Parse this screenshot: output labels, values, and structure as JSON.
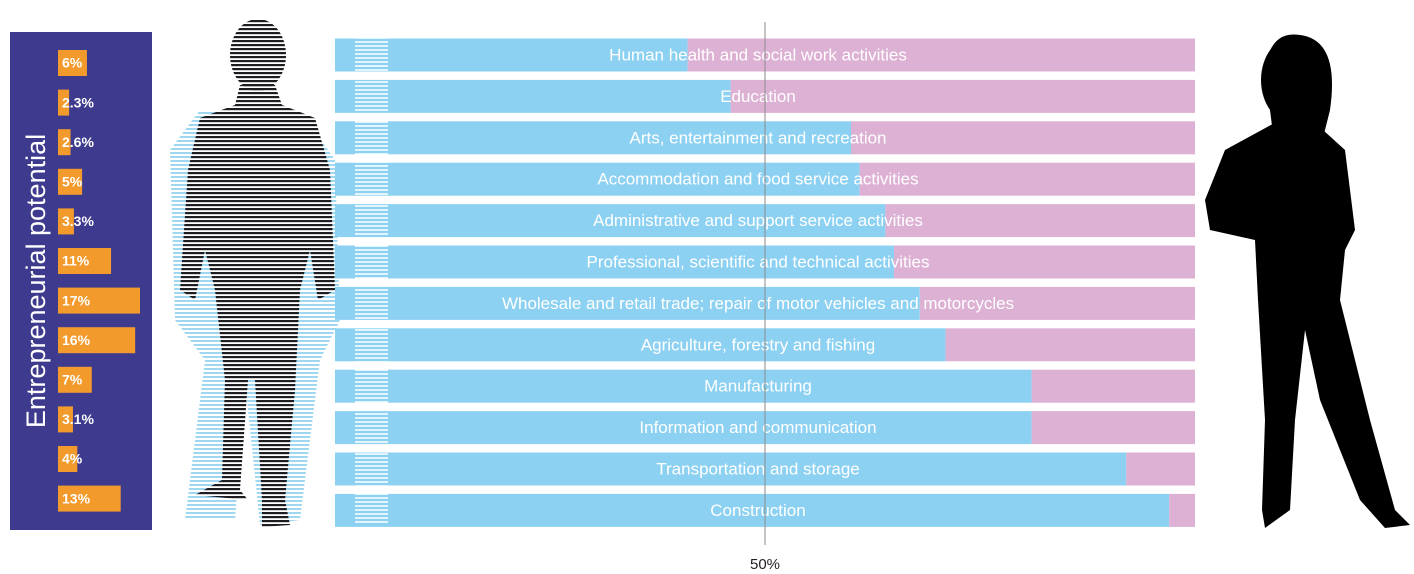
{
  "chart_data": {
    "type": "bar",
    "title": "Entrepreneurial potential",
    "categories": [
      "Human health and social work activities",
      "Education",
      "Arts, entertainment and recreation",
      "Accommodation and food service activities",
      "Administrative and support service activities",
      "Professional, scientific and technical activities",
      "Wholesale and retail trade; repair of motor vehicles and motorcycles",
      "Agriculture, forestry and fishing",
      "Manufacturing",
      "Information and communication",
      "Transportation and storage",
      "Construction"
    ],
    "potential": {
      "color": "#f39a2c",
      "panel_color": "#3e3b8f",
      "values": [
        6,
        2.3,
        2.6,
        5,
        3.3,
        11,
        17,
        16,
        7,
        3.1,
        4,
        13
      ],
      "value_labels": [
        "6%",
        "2.3%",
        "2.6%",
        "5%",
        "3.3%",
        "11%",
        "17%",
        "16%",
        "7%",
        "3.1%",
        "4%",
        "13%"
      ]
    },
    "series": [
      {
        "color": "#8dd1f2",
        "values": [
          41,
          46,
          60,
          61,
          64,
          65,
          68,
          71,
          81,
          81,
          92,
          97
        ]
      },
      {
        "color": "#ddb1d4",
        "values": [
          59,
          54,
          40,
          39,
          36,
          35,
          32,
          29,
          19,
          19,
          8,
          3
        ]
      }
    ],
    "xlim": [
      0,
      100
    ],
    "xticks": [
      {
        "value": 50,
        "label": "50%"
      }
    ]
  }
}
